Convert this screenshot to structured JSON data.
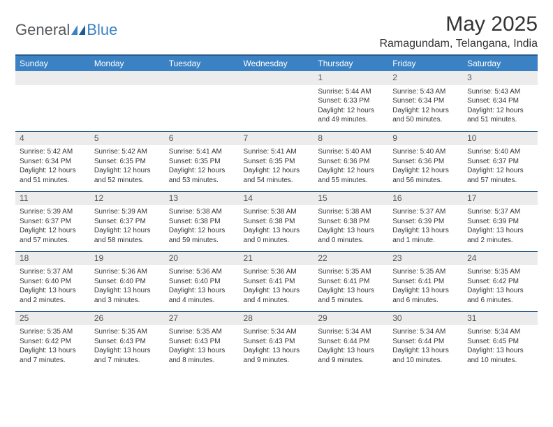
{
  "logo": {
    "part1": "General",
    "part2": "Blue"
  },
  "header": {
    "month_title": "May 2025",
    "location": "Ramagundam, Telangana, India"
  },
  "calendar": {
    "day_header_bg": "#3b82c4",
    "day_header_fg": "#ffffff",
    "grid_line_color": "#2a5a8a",
    "daynum_bg": "#ececec",
    "font_family": "Arial",
    "columns": [
      "Sunday",
      "Monday",
      "Tuesday",
      "Wednesday",
      "Thursday",
      "Friday",
      "Saturday"
    ],
    "weeks": [
      [
        {
          "blank": true
        },
        {
          "blank": true
        },
        {
          "blank": true
        },
        {
          "blank": true
        },
        {
          "d": "1",
          "sunrise": "5:44 AM",
          "sunset": "6:33 PM",
          "daylight": "12 hours and 49 minutes."
        },
        {
          "d": "2",
          "sunrise": "5:43 AM",
          "sunset": "6:34 PM",
          "daylight": "12 hours and 50 minutes."
        },
        {
          "d": "3",
          "sunrise": "5:43 AM",
          "sunset": "6:34 PM",
          "daylight": "12 hours and 51 minutes."
        }
      ],
      [
        {
          "d": "4",
          "sunrise": "5:42 AM",
          "sunset": "6:34 PM",
          "daylight": "12 hours and 51 minutes."
        },
        {
          "d": "5",
          "sunrise": "5:42 AM",
          "sunset": "6:35 PM",
          "daylight": "12 hours and 52 minutes."
        },
        {
          "d": "6",
          "sunrise": "5:41 AM",
          "sunset": "6:35 PM",
          "daylight": "12 hours and 53 minutes."
        },
        {
          "d": "7",
          "sunrise": "5:41 AM",
          "sunset": "6:35 PM",
          "daylight": "12 hours and 54 minutes."
        },
        {
          "d": "8",
          "sunrise": "5:40 AM",
          "sunset": "6:36 PM",
          "daylight": "12 hours and 55 minutes."
        },
        {
          "d": "9",
          "sunrise": "5:40 AM",
          "sunset": "6:36 PM",
          "daylight": "12 hours and 56 minutes."
        },
        {
          "d": "10",
          "sunrise": "5:40 AM",
          "sunset": "6:37 PM",
          "daylight": "12 hours and 57 minutes."
        }
      ],
      [
        {
          "d": "11",
          "sunrise": "5:39 AM",
          "sunset": "6:37 PM",
          "daylight": "12 hours and 57 minutes."
        },
        {
          "d": "12",
          "sunrise": "5:39 AM",
          "sunset": "6:37 PM",
          "daylight": "12 hours and 58 minutes."
        },
        {
          "d": "13",
          "sunrise": "5:38 AM",
          "sunset": "6:38 PM",
          "daylight": "12 hours and 59 minutes."
        },
        {
          "d": "14",
          "sunrise": "5:38 AM",
          "sunset": "6:38 PM",
          "daylight": "13 hours and 0 minutes."
        },
        {
          "d": "15",
          "sunrise": "5:38 AM",
          "sunset": "6:38 PM",
          "daylight": "13 hours and 0 minutes."
        },
        {
          "d": "16",
          "sunrise": "5:37 AM",
          "sunset": "6:39 PM",
          "daylight": "13 hours and 1 minute."
        },
        {
          "d": "17",
          "sunrise": "5:37 AM",
          "sunset": "6:39 PM",
          "daylight": "13 hours and 2 minutes."
        }
      ],
      [
        {
          "d": "18",
          "sunrise": "5:37 AM",
          "sunset": "6:40 PM",
          "daylight": "13 hours and 2 minutes."
        },
        {
          "d": "19",
          "sunrise": "5:36 AM",
          "sunset": "6:40 PM",
          "daylight": "13 hours and 3 minutes."
        },
        {
          "d": "20",
          "sunrise": "5:36 AM",
          "sunset": "6:40 PM",
          "daylight": "13 hours and 4 minutes."
        },
        {
          "d": "21",
          "sunrise": "5:36 AM",
          "sunset": "6:41 PM",
          "daylight": "13 hours and 4 minutes."
        },
        {
          "d": "22",
          "sunrise": "5:35 AM",
          "sunset": "6:41 PM",
          "daylight": "13 hours and 5 minutes."
        },
        {
          "d": "23",
          "sunrise": "5:35 AM",
          "sunset": "6:41 PM",
          "daylight": "13 hours and 6 minutes."
        },
        {
          "d": "24",
          "sunrise": "5:35 AM",
          "sunset": "6:42 PM",
          "daylight": "13 hours and 6 minutes."
        }
      ],
      [
        {
          "d": "25",
          "sunrise": "5:35 AM",
          "sunset": "6:42 PM",
          "daylight": "13 hours and 7 minutes."
        },
        {
          "d": "26",
          "sunrise": "5:35 AM",
          "sunset": "6:43 PM",
          "daylight": "13 hours and 7 minutes."
        },
        {
          "d": "27",
          "sunrise": "5:35 AM",
          "sunset": "6:43 PM",
          "daylight": "13 hours and 8 minutes."
        },
        {
          "d": "28",
          "sunrise": "5:34 AM",
          "sunset": "6:43 PM",
          "daylight": "13 hours and 9 minutes."
        },
        {
          "d": "29",
          "sunrise": "5:34 AM",
          "sunset": "6:44 PM",
          "daylight": "13 hours and 9 minutes."
        },
        {
          "d": "30",
          "sunrise": "5:34 AM",
          "sunset": "6:44 PM",
          "daylight": "13 hours and 10 minutes."
        },
        {
          "d": "31",
          "sunrise": "5:34 AM",
          "sunset": "6:45 PM",
          "daylight": "13 hours and 10 minutes."
        }
      ]
    ],
    "labels": {
      "sunrise": "Sunrise: ",
      "sunset": "Sunset: ",
      "daylight": "Daylight: "
    }
  }
}
